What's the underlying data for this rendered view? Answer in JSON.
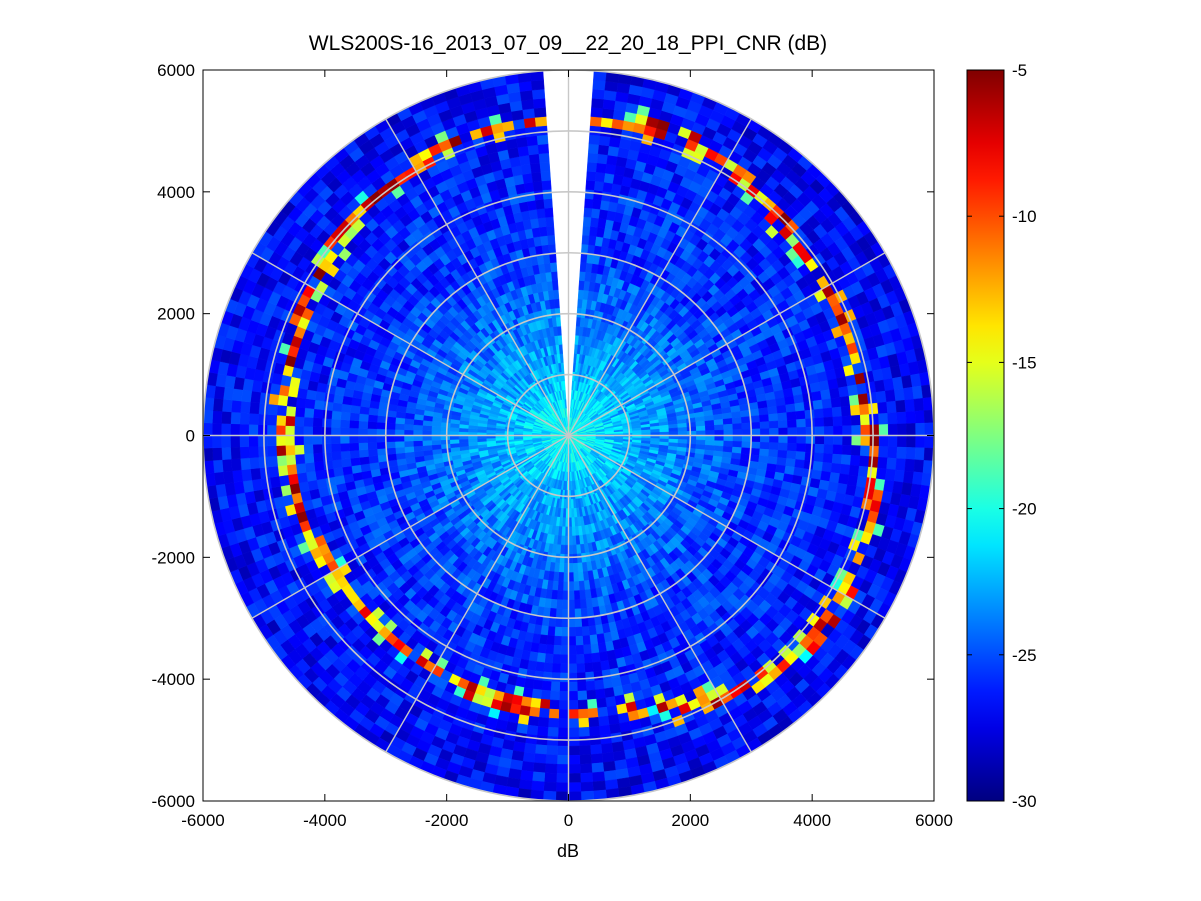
{
  "chart_data": {
    "type": "heatmap",
    "subtype": "polar-ppi",
    "title": "WLS200S-16_2013_07_09__22_20_18_PPI_CNR (dB)",
    "xlabel": "dB",
    "ylabel": "",
    "xlim": [
      -6000,
      6000
    ],
    "ylim": [
      -6000,
      6000
    ],
    "xticks": [
      -6000,
      -4000,
      -2000,
      0,
      2000,
      4000,
      6000
    ],
    "yticks": [
      6000,
      4000,
      2000,
      0,
      -2000,
      -4000,
      -6000
    ],
    "range_rings_m": [
      1000,
      2000,
      3000,
      4000,
      5000,
      6000
    ],
    "spokes_deg_step": 30,
    "max_range_m": 6000,
    "missing_sector_deg": [
      -4,
      4
    ],
    "grid": true,
    "colormap": "jet",
    "colorbar": {
      "clim": [
        -30,
        -5
      ],
      "ticks": [
        -5,
        -10,
        -15,
        -20,
        -25,
        -30
      ],
      "placement": "right"
    },
    "cnr_profile_dB": [
      {
        "range_m": 0,
        "cnr": -20
      },
      {
        "range_m": 1000,
        "cnr": -22.5
      },
      {
        "range_m": 2000,
        "cnr": -24
      },
      {
        "range_m": 3000,
        "cnr": -25.5
      },
      {
        "range_m": 4000,
        "cnr": -26
      },
      {
        "range_m": 5000,
        "cnr": -26.5
      },
      {
        "range_m": 6000,
        "cnr": -27
      }
    ],
    "hard_target_band": [
      {
        "azimuth_deg": 0,
        "range_m": 5150
      },
      {
        "azimuth_deg": 20,
        "range_m": 5300
      },
      {
        "azimuth_deg": 40,
        "range_m": 5000
      },
      {
        "azimuth_deg": 60,
        "range_m": 4850
      },
      {
        "azimuth_deg": 80,
        "range_m": 4850
      },
      {
        "azimuth_deg": 95,
        "range_m": 5000
      },
      {
        "azimuth_deg": 110,
        "range_m": 5200
      },
      {
        "azimuth_deg": 130,
        "range_m": 5250
      },
      {
        "azimuth_deg": 150,
        "range_m": 4950
      },
      {
        "azimuth_deg": 170,
        "range_m": 4600
      },
      {
        "azimuth_deg": 190,
        "range_m": 4500
      },
      {
        "azimuth_deg": 210,
        "range_m": 4450
      },
      {
        "azimuth_deg": 230,
        "range_m": 4400
      },
      {
        "azimuth_deg": 250,
        "range_m": 4550
      },
      {
        "azimuth_deg": 270,
        "range_m": 4650
      },
      {
        "azimuth_deg": 290,
        "range_m": 4750
      },
      {
        "azimuth_deg": 305,
        "range_m": 4900
      },
      {
        "azimuth_deg": 320,
        "range_m": 5000
      },
      {
        "azimuth_deg": 340,
        "range_m": 5150
      },
      {
        "azimuth_deg": 360,
        "range_m": 5150
      }
    ]
  }
}
